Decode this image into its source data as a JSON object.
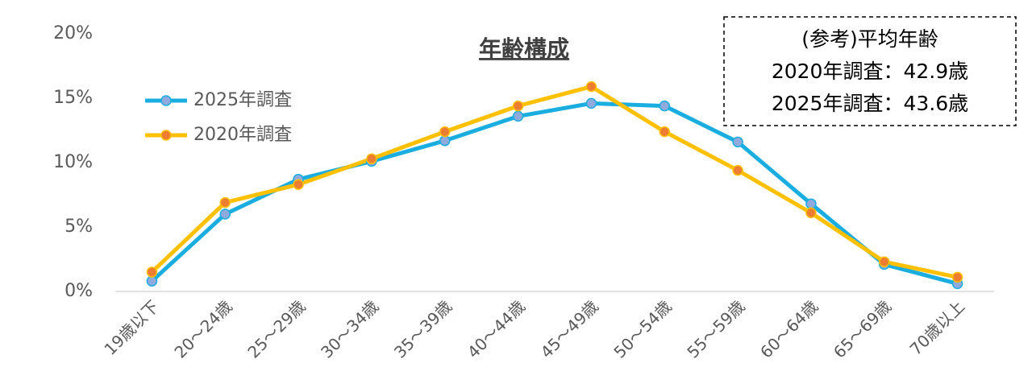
{
  "chart_data": {
    "type": "line",
    "title": "年齢構成",
    "categories": [
      "19歳以下",
      "20～24歳",
      "25～29歳",
      "30～34歳",
      "35～39歳",
      "40～44歳",
      "45～49歳",
      "50～54歳",
      "55～59歳",
      "60～64歳",
      "65～69歳",
      "70歳以上"
    ],
    "series": [
      {
        "name": "2025年調査",
        "color": "#1aade0",
        "marker_color": "#8faadc",
        "values": [
          0.8,
          6.0,
          8.7,
          10.1,
          11.7,
          13.6,
          14.6,
          14.4,
          11.6,
          6.8,
          2.1,
          0.6
        ]
      },
      {
        "name": "2020年調査",
        "color": "#ffc000",
        "marker_color": "#ed7d31",
        "values": [
          1.5,
          6.9,
          8.3,
          10.3,
          12.4,
          14.4,
          15.9,
          12.4,
          9.4,
          6.1,
          2.3,
          1.1
        ]
      }
    ],
    "ylim": [
      0,
      20
    ],
    "yticks": [
      {
        "value": 0,
        "label": "0%"
      },
      {
        "value": 5,
        "label": "5%"
      },
      {
        "value": 10,
        "label": "10%"
      },
      {
        "value": 15,
        "label": "15%"
      },
      {
        "value": 20,
        "label": "20%"
      }
    ],
    "grid": false,
    "legend": "upper-left",
    "annotations": [
      "(参考)平均年齢",
      "2020年調査：42.9歳",
      "2025年調査：43.6歳"
    ]
  }
}
